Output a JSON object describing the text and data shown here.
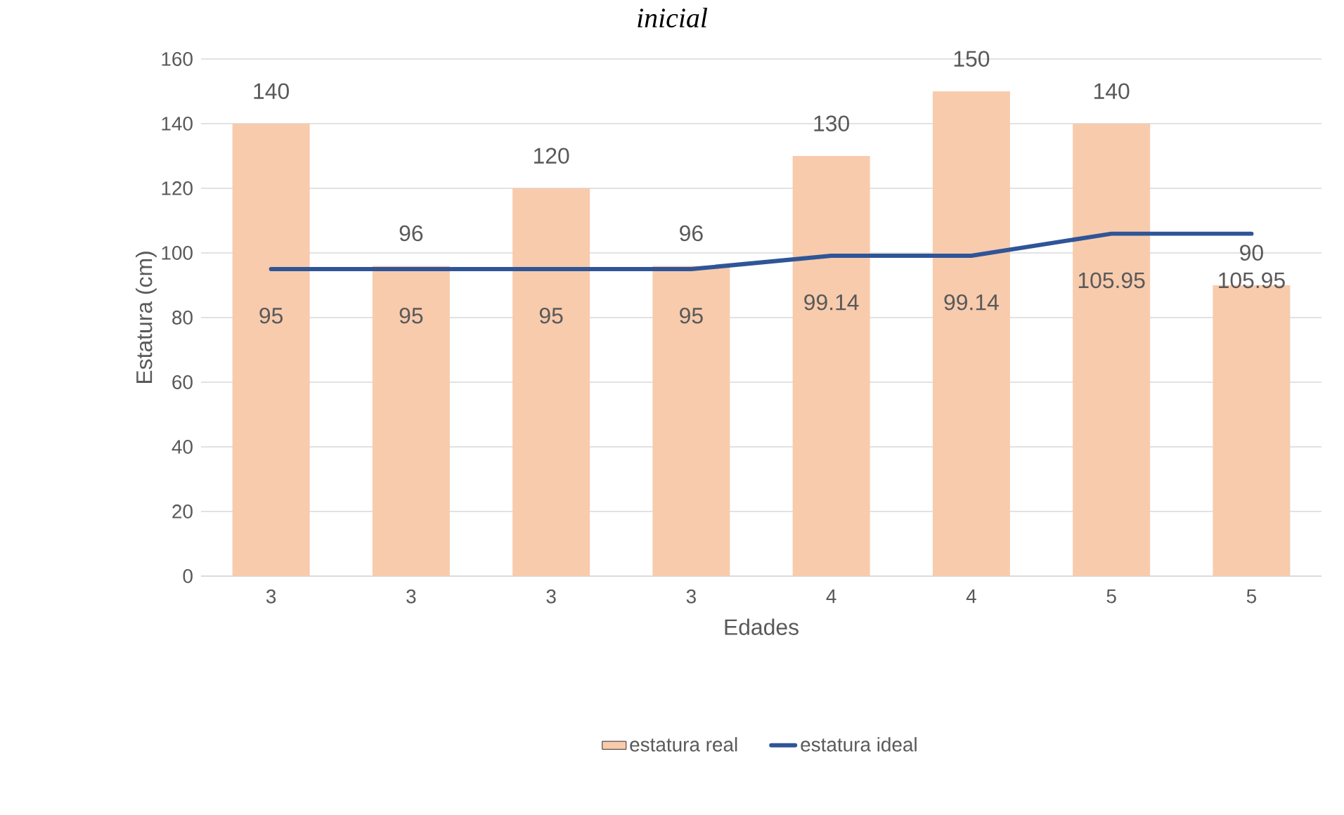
{
  "chart_data": {
    "type": "bar",
    "title": "*inicial*",
    "xlabel": "Edades",
    "ylabel": "Estatura (cm)",
    "categories": [
      "3",
      "3",
      "3",
      "3",
      "4",
      "4",
      "5",
      "5"
    ],
    "series": [
      {
        "name": "estatura real",
        "color": "#f8cbad",
        "values": [
          140,
          96,
          120,
          96,
          130,
          150,
          140,
          90
        ]
      },
      {
        "name": "estatura ideal",
        "type": "line",
        "color": "#2f5597",
        "values": [
          95,
          95,
          95,
          95,
          99.14,
          99.14,
          105.95,
          105.95
        ]
      }
    ],
    "ylim": [
      0,
      160
    ],
    "yticks": [
      0,
      20,
      40,
      60,
      80,
      100,
      120,
      140,
      160
    ],
    "grid": "y",
    "legend": "bottom",
    "data_labels": true
  }
}
